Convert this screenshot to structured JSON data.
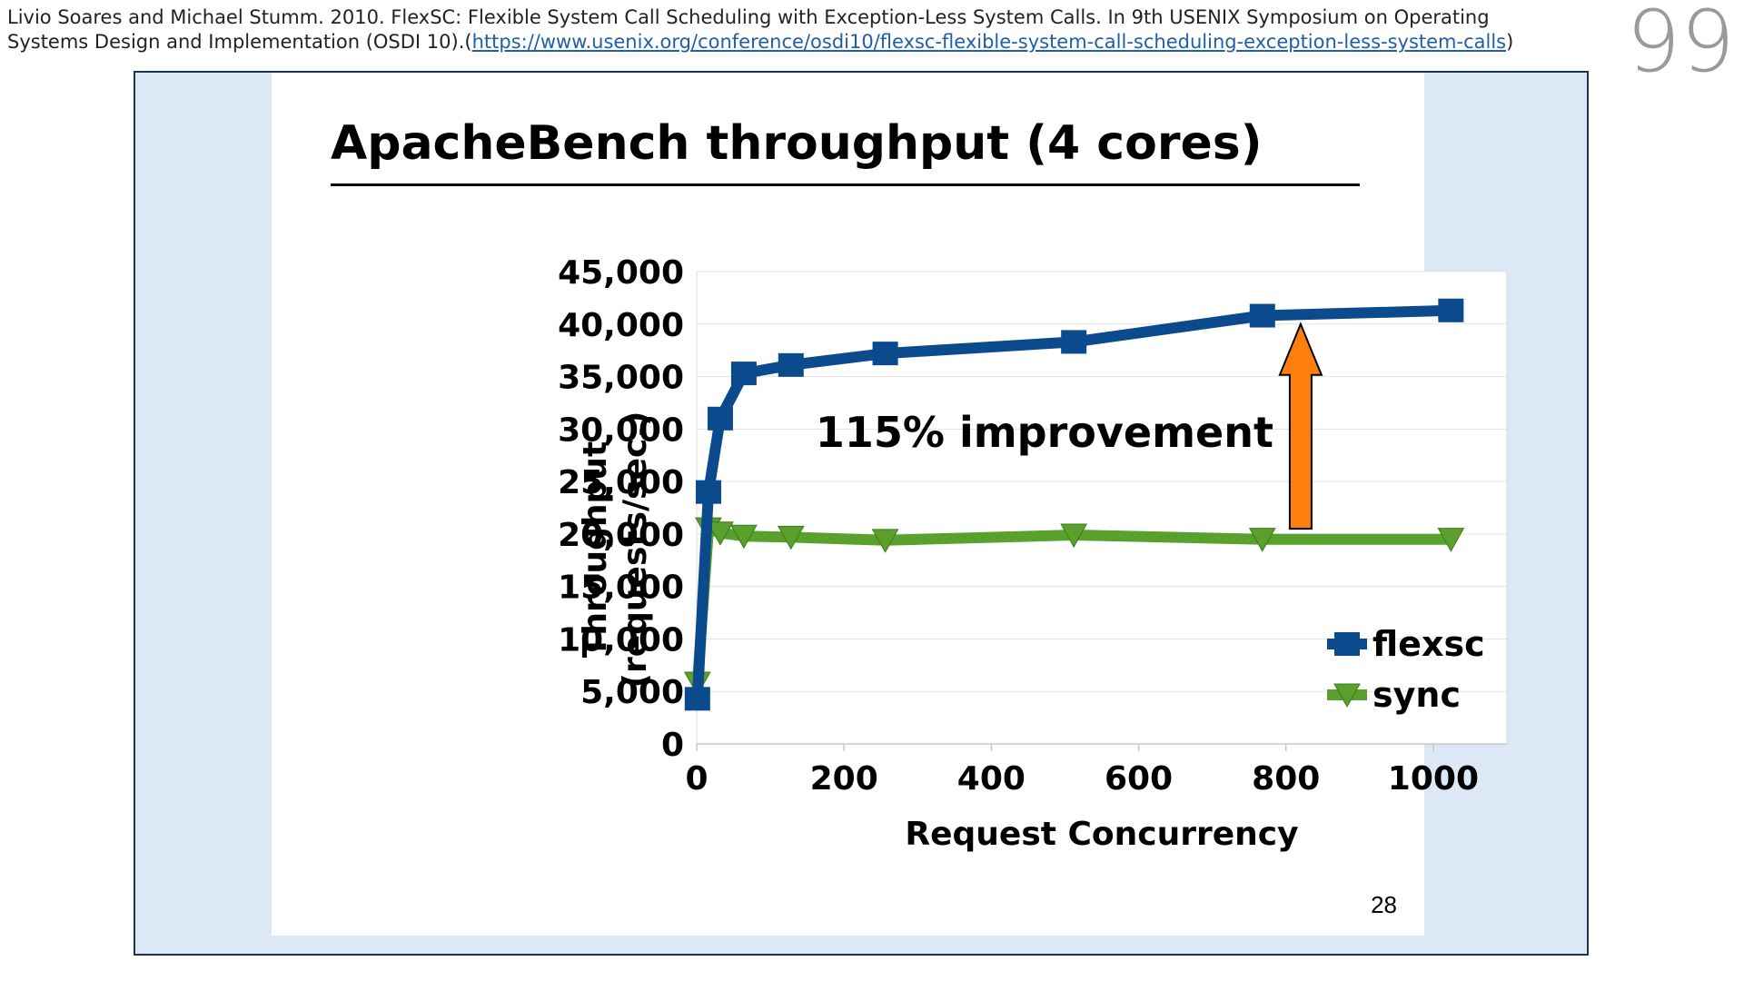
{
  "citation": {
    "text": "Livio Soares and Michael Stumm. 2010. FlexSC: Flexible System Call Scheduling with Exception-Less System Calls. In 9th USENIX Symposium on Operating Systems Design and Implementation (OSDI 10).(",
    "link": "https://www.usenix.org/conference/osdi10/flexsc-flexible-system-call-scheduling-exception-less-system-calls",
    "suffix": ")"
  },
  "page_number": "99",
  "slide": {
    "title": "ApacheBench throughput (4 cores)",
    "slide_number": "28"
  },
  "colors": {
    "flexsc": "#0b4a8d",
    "sync": "#5aa02c",
    "arrow": "#ff7f0e",
    "frame_background": "#dce8f5"
  },
  "chart_data": {
    "type": "line",
    "xlabel": "Request Concurrency",
    "ylabel_lines": [
      "Throughput",
      "(requests/sec.)"
    ],
    "xlim": [
      0,
      1100
    ],
    "ylim": [
      0,
      45000
    ],
    "x_ticks": [
      "0",
      "200",
      "400",
      "600",
      "800",
      "1000"
    ],
    "y_ticks": [
      "0",
      "5,000",
      "10,000",
      "15,000",
      "20,000",
      "25,000",
      "30,000",
      "35,000",
      "40,000",
      "45,000"
    ],
    "grid": true,
    "legend_position": "bottom-right",
    "series": [
      {
        "name": "flexsc",
        "marker": "square",
        "points": [
          [
            1,
            4300
          ],
          [
            16,
            24000
          ],
          [
            32,
            31000
          ],
          [
            64,
            35300
          ],
          [
            128,
            36100
          ],
          [
            256,
            37200
          ],
          [
            512,
            38300
          ],
          [
            768,
            40800
          ],
          [
            1024,
            41300
          ]
        ]
      },
      {
        "name": "sync",
        "marker": "triangle-down",
        "points": [
          [
            1,
            5800
          ],
          [
            16,
            20500
          ],
          [
            32,
            20100
          ],
          [
            64,
            19800
          ],
          [
            128,
            19700
          ],
          [
            256,
            19400
          ],
          [
            512,
            19900
          ],
          [
            768,
            19500
          ],
          [
            1024,
            19500
          ]
        ]
      }
    ],
    "annotation": {
      "text": "115% improvement",
      "arrow_x": 820,
      "arrow_from": 20500,
      "arrow_to": 40000
    }
  }
}
